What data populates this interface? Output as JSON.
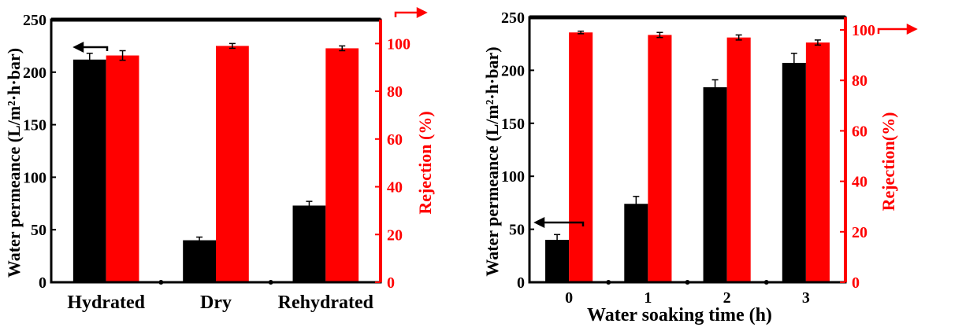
{
  "chart_data": [
    {
      "type": "bar",
      "categories": [
        "Hydrated",
        "Dry",
        "Rehydrated"
      ],
      "xlabel": "",
      "ylabel": "Water permeance (L/m²·h·bar)",
      "y2label": "Rejection (%)",
      "ylim": [
        0,
        250
      ],
      "y2lim": [
        0,
        110
      ],
      "yticks": [
        0,
        50,
        100,
        150,
        200,
        250
      ],
      "y2ticks": [
        0,
        20,
        40,
        60,
        80,
        100
      ],
      "series": [
        {
          "axis": "left",
          "color": "#000000",
          "values": [
            212,
            40,
            73
          ],
          "errors": [
            6,
            3,
            4
          ]
        },
        {
          "axis": "right",
          "color": "#ff0000",
          "values": [
            95,
            99,
            98
          ],
          "errors": [
            2,
            1,
            1
          ]
        }
      ],
      "grid": false
    },
    {
      "type": "bar",
      "categories": [
        "0",
        "1",
        "2",
        "3"
      ],
      "xlabel": "Water soaking time (h)",
      "ylabel": "Water permeance (L/m²·h·bar)",
      "y2label": "Rejection(%)",
      "ylim": [
        0,
        250
      ],
      "y2lim": [
        0,
        105
      ],
      "yticks": [
        0,
        50,
        100,
        150,
        200,
        250
      ],
      "y2ticks": [
        0,
        20,
        40,
        60,
        80,
        100
      ],
      "series": [
        {
          "axis": "left",
          "color": "#000000",
          "values": [
            40,
            74,
            184,
            207
          ],
          "errors": [
            5,
            7,
            7,
            9
          ]
        },
        {
          "axis": "right",
          "color": "#ff0000",
          "values": [
            99,
            98,
            97,
            95
          ],
          "errors": [
            0.5,
            1,
            1,
            1
          ]
        }
      ],
      "grid": false
    }
  ]
}
